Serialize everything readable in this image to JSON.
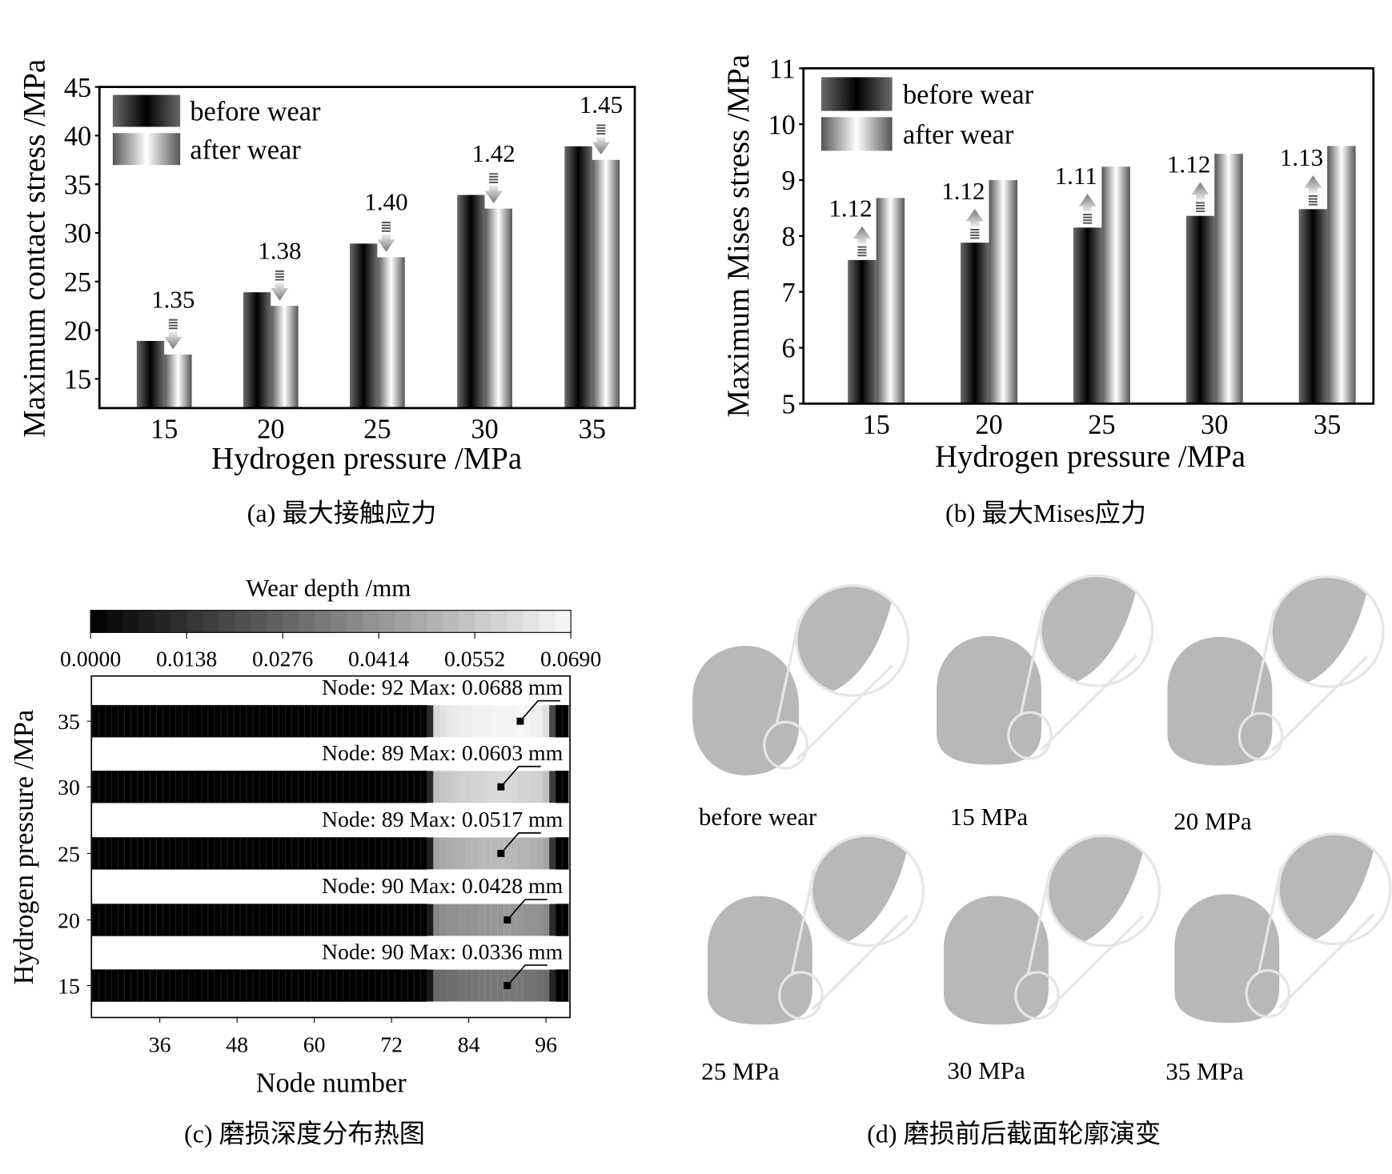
{
  "captions": {
    "a": "(a) 最大接触应力",
    "b": "(b) 最大Mises应力",
    "c": "(c) 磨损深度分布热图",
    "d": "(d) 磨损前后截面轮廓演变"
  },
  "chart_data": [
    {
      "id": "a",
      "type": "bar",
      "xlabel": "Hydrogen pressure /MPa",
      "ylabel": "Maximum contact stress /MPa",
      "categories": [
        "15",
        "20",
        "25",
        "30",
        "35"
      ],
      "ylim": [
        12,
        45
      ],
      "yticks": [
        "15",
        "20",
        "25",
        "30",
        "35",
        "40",
        "45"
      ],
      "legend_position": "top-left",
      "series": [
        {
          "name": "before wear",
          "values": [
            18.9,
            23.9,
            28.9,
            33.9,
            38.9
          ]
        },
        {
          "name": "after wear",
          "values": [
            17.5,
            22.5,
            27.5,
            32.5,
            37.5
          ]
        }
      ],
      "annotations": [
        "1.35",
        "1.38",
        "1.40",
        "1.42",
        "1.45"
      ],
      "annotation_arrow": "down"
    },
    {
      "id": "b",
      "type": "bar",
      "xlabel": "Hydrogen pressure /MPa",
      "ylabel": "Maximum Mises stress /MPa",
      "categories": [
        "15",
        "20",
        "25",
        "30",
        "35"
      ],
      "ylim": [
        5,
        11
      ],
      "yticks": [
        "5",
        "6",
        "7",
        "8",
        "9",
        "10",
        "11"
      ],
      "legend_position": "top-left",
      "series": [
        {
          "name": "before wear",
          "values": [
            7.57,
            7.88,
            8.15,
            8.36,
            8.48
          ]
        },
        {
          "name": "after wear",
          "values": [
            8.68,
            9.0,
            9.24,
            9.47,
            9.61
          ]
        }
      ],
      "annotations": [
        "1.12",
        "1.12",
        "1.11",
        "1.12",
        "1.13"
      ],
      "annotation_arrow": "up"
    },
    {
      "id": "c",
      "type": "heatmap",
      "colorbar_title": "Wear depth /mm",
      "colorbar_ticks": [
        "0.0000",
        "0.0138",
        "0.0276",
        "0.0414",
        "0.0552",
        "0.0690"
      ],
      "colorbar_range": [
        0,
        0.069
      ],
      "xlabel": "Node number",
      "ylabel": "Hydrogen pressure /MPa",
      "xticks": [
        "36",
        "48",
        "60",
        "72",
        "84",
        "96"
      ],
      "xlim": [
        25,
        99
      ],
      "rows": [
        {
          "pressure": "35",
          "label": "Node: 92  Max: 0.0688 mm",
          "max_node": 92,
          "values": [
            0,
            0,
            0,
            0,
            0,
            0,
            0,
            0,
            0,
            0,
            0,
            0,
            0,
            0,
            0,
            0,
            0,
            0,
            0,
            0,
            0,
            0,
            0,
            0,
            0,
            0,
            0,
            0,
            0,
            0,
            0,
            0,
            0,
            0,
            0,
            0,
            0,
            0,
            0,
            0,
            0,
            0,
            0,
            0,
            0,
            0,
            0,
            0,
            0,
            0,
            0,
            0,
            0,
            0.012,
            0.06,
            0.063,
            0.064,
            0.065,
            0.066,
            0.066,
            0.067,
            0.067,
            0.067,
            0.068,
            0.068,
            0.068,
            0.068,
            0.0688,
            0.068,
            0.067,
            0.066,
            0.062,
            0.02,
            0,
            0
          ]
        },
        {
          "pressure": "30",
          "label": "Node: 89  Max: 0.0603 mm",
          "max_node": 89,
          "values": [
            0,
            0,
            0,
            0,
            0,
            0,
            0,
            0,
            0,
            0,
            0,
            0,
            0,
            0,
            0,
            0,
            0,
            0,
            0,
            0,
            0,
            0,
            0,
            0,
            0,
            0,
            0,
            0,
            0,
            0,
            0,
            0,
            0,
            0,
            0,
            0,
            0,
            0,
            0,
            0,
            0,
            0,
            0,
            0,
            0,
            0,
            0,
            0,
            0,
            0,
            0,
            0,
            0,
            0.011,
            0.053,
            0.055,
            0.056,
            0.057,
            0.058,
            0.058,
            0.059,
            0.059,
            0.06,
            0.06,
            0.0603,
            0.06,
            0.06,
            0.059,
            0.059,
            0.058,
            0.058,
            0.054,
            0.017,
            0,
            0
          ]
        },
        {
          "pressure": "25",
          "label": "Node: 89  Max: 0.0517 mm",
          "max_node": 89,
          "values": [
            0,
            0,
            0,
            0,
            0,
            0,
            0,
            0,
            0,
            0,
            0,
            0,
            0,
            0,
            0,
            0,
            0,
            0,
            0,
            0,
            0,
            0,
            0,
            0,
            0,
            0,
            0,
            0,
            0,
            0,
            0,
            0,
            0,
            0,
            0,
            0,
            0,
            0,
            0,
            0,
            0,
            0,
            0,
            0,
            0,
            0,
            0,
            0,
            0,
            0,
            0,
            0,
            0,
            0.009,
            0.045,
            0.047,
            0.048,
            0.049,
            0.049,
            0.05,
            0.05,
            0.051,
            0.051,
            0.051,
            0.0517,
            0.051,
            0.051,
            0.05,
            0.05,
            0.049,
            0.048,
            0.046,
            0.015,
            0,
            0
          ]
        },
        {
          "pressure": "20",
          "label": "Node: 90  Max: 0.0428 mm",
          "max_node": 90,
          "values": [
            0,
            0,
            0,
            0,
            0,
            0,
            0,
            0,
            0,
            0,
            0,
            0,
            0,
            0,
            0,
            0,
            0,
            0,
            0,
            0,
            0,
            0,
            0,
            0,
            0,
            0,
            0,
            0,
            0,
            0,
            0,
            0,
            0,
            0,
            0,
            0,
            0,
            0,
            0,
            0,
            0,
            0,
            0,
            0,
            0,
            0,
            0,
            0,
            0,
            0,
            0,
            0,
            0,
            0.008,
            0.037,
            0.039,
            0.04,
            0.04,
            0.041,
            0.041,
            0.041,
            0.042,
            0.042,
            0.042,
            0.042,
            0.0428,
            0.042,
            0.042,
            0.041,
            0.041,
            0.04,
            0.038,
            0.012,
            0,
            0
          ]
        },
        {
          "pressure": "15",
          "label": "Node: 90  Max: 0.0336 mm",
          "max_node": 90,
          "values": [
            0,
            0,
            0,
            0,
            0,
            0,
            0,
            0,
            0,
            0,
            0,
            0,
            0,
            0,
            0,
            0,
            0,
            0,
            0,
            0,
            0,
            0,
            0,
            0,
            0,
            0,
            0,
            0,
            0,
            0,
            0,
            0,
            0,
            0,
            0,
            0,
            0,
            0,
            0,
            0,
            0,
            0,
            0,
            0,
            0,
            0,
            0,
            0,
            0,
            0,
            0,
            0,
            0,
            0.006,
            0.029,
            0.03,
            0.031,
            0.031,
            0.032,
            0.032,
            0.032,
            0.033,
            0.033,
            0.033,
            0.033,
            0.0336,
            0.033,
            0.033,
            0.032,
            0.032,
            0.031,
            0.03,
            0.01,
            0,
            0
          ]
        }
      ]
    }
  ],
  "profiles": {
    "items": [
      {
        "label": "before wear",
        "shape": "ellipse"
      },
      {
        "label": "15 MPa",
        "shape": "worn"
      },
      {
        "label": "20 MPa",
        "shape": "worn"
      },
      {
        "label": "25 MPa",
        "shape": "worn"
      },
      {
        "label": "30 MPa",
        "shape": "worn"
      },
      {
        "label": "35 MPa",
        "shape": "worn"
      }
    ],
    "fill_color": "#b8b8b8",
    "outline_color": "#e6e6e6"
  }
}
